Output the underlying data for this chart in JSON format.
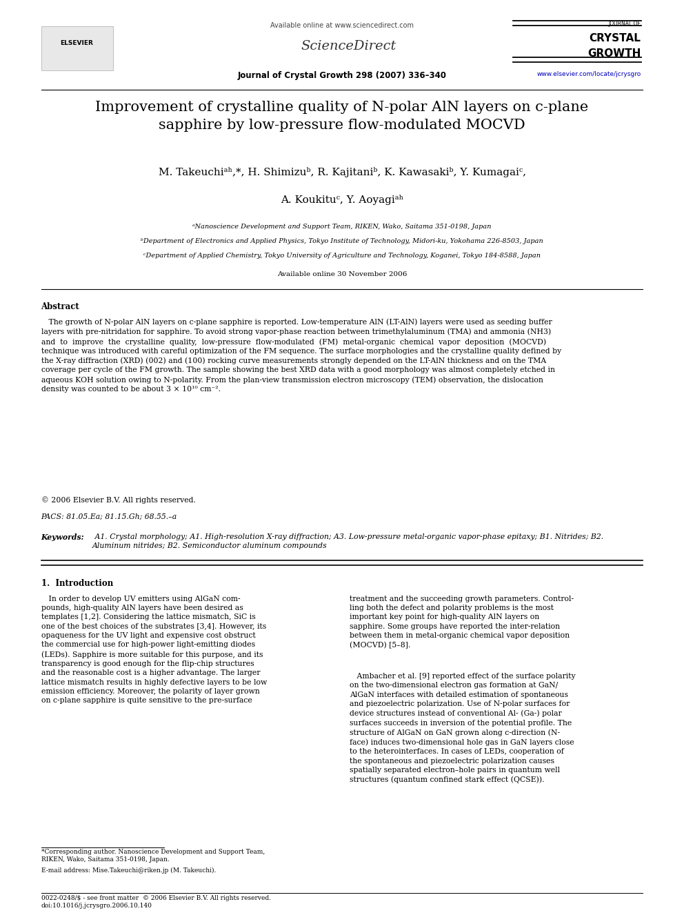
{
  "page_width": 9.92,
  "page_height": 13.23,
  "bg_color": "#ffffff",
  "header_available_online": "Available online at www.sciencedirect.com",
  "header_journal_info": "Journal of Crystal Growth 298 (2007) 336–340",
  "header_website": "www.elsevier.com/locate/jcrysgro",
  "header_journal_name1": "JOURNAL OF",
  "header_journal_name2": "CRYSTAL",
  "header_journal_name3": "GROWTH",
  "title": "Improvement of crystalline quality of N-polar AlN layers on c-plane\nsapphire by low-pressure flow-modulated MOCVD",
  "authors_line1": "M. Takeuchiᵃʰ,*, H. Shimizuᵇ, R. Kajitaniᵇ, K. Kawasakiᵇ, Y. Kumagaiᶜ,",
  "authors_line2": "A. Koukituᶜ, Y. Aoyagiᵃʰ",
  "aff1": "ᵃNanoscience Development and Support Team, RIKEN, Wako, Saitama 351-0198, Japan",
  "aff2": "ᵇDepartment of Electronics and Applied Physics, Tokyo Institute of Technology, Midori-ku, Yokohama 226-8503, Japan",
  "aff3": "ᶜDepartment of Applied Chemistry, Tokyo University of Agriculture and Technology, Koganei, Tokyo 184-8588, Japan",
  "available_online_date": "Available online 30 November 2006",
  "abstract_title": "Abstract",
  "abstract_text": "   The growth of N-polar AlN layers on c-plane sapphire is reported. Low-temperature AlN (LT-AlN) layers were used as seeding buffer\nlayers with pre-nitridation for sapphire. To avoid strong vapor-phase reaction between trimethylaluminum (TMA) and ammonia (NH3)\nand  to  improve  the  crystalline  quality,  low-pressure  flow-modulated  (FM)  metal-organic  chemical  vapor  deposition  (MOCVD)\ntechnique was introduced with careful optimization of the FM sequence. The surface morphologies and the crystalline quality defined by\nthe X-ray diffraction (XRD) (002) and (100) rocking curve measurements strongly depended on the LT-AlN thickness and on the TMA\ncoverage per cycle of the FM growth. The sample showing the best XRD data with a good morphology was almost completely etched in\naqueous KOH solution owing to N-polarity. From the plan-view transmission electron microscopy (TEM) observation, the dislocation\ndensity was counted to be about 3 × 10¹⁰ cm⁻².",
  "copyright": "© 2006 Elsevier B.V. All rights reserved.",
  "pacs": "PACS: 81.05.Ea; 81.15.Gh; 68.55.–a",
  "keywords_label": "Keywords:",
  "keywords_text": " A1. Crystal morphology; A1. High-resolution X-ray diffraction; A3. Low-pressure metal-organic vapor-phase epitaxy; B1. Nitrides; B2.\nAluminum nitrides; B2. Semiconductor aluminum compounds",
  "sec1_title": "1.  Introduction",
  "sec1_col1_para1": "   In order to develop UV emitters using AlGaN com-\npounds, high-quality AlN layers have been desired as\ntemplates [1,2]. Considering the lattice mismatch, SiC is\none of the best choices of the substrates [3,4]. However, its\nopaqueness for the UV light and expensive cost obstruct\nthe commercial use for high-power light-emitting diodes\n(LEDs). Sapphire is more suitable for this purpose, and its\ntransparency is good enough for the flip-chip structures\nand the reasonable cost is a higher advantage. The larger\nlattice mismatch results in highly defective layers to be low\nemission efficiency. Moreover, the polarity of layer grown\non c-plane sapphire is quite sensitive to the pre-surface",
  "sec1_col2_para1": "treatment and the succeeding growth parameters. Control-\nling both the defect and polarity problems is the most\nimportant key point for high-quality AlN layers on\nsapphire. Some groups have reported the inter-relation\nbetween them in metal-organic chemical vapor deposition\n(MOCVD) [5–8].",
  "sec1_col2_para2": "   Ambacher et al. [9] reported effect of the surface polarity\non the two-dimensional electron gas formation at GaN/\nAlGaN interfaces with detailed estimation of spontaneous\nand piezoelectric polarization. Use of N-polar surfaces for\ndevice structures instead of conventional Al- (Ga-) polar\nsurfaces succeeds in inversion of the potential profile. The\nstructure of AlGaN on GaN grown along c-direction (N-\nface) induces two-dimensional hole gas in GaN layers close\nto the heterointerfaces. In cases of LEDs, cooperation of\nthe spontaneous and piezoelectric polarization causes\nspatially separated electron–hole pairs in quantum well\nstructures (quantum confined stark effect (QCSE)).",
  "footnote_line": "*Corresponding author. Nanoscience Development and Support Team,\nRIKEN, Wako, Saitama 351-0198, Japan.",
  "footnote_email": "E-mail address: Mise.Takeuchi@riken.jp (M. Takeuchi).",
  "footer_text": "0022-0248/$ - see front matter  © 2006 Elsevier B.V. All rights reserved.\ndoi:10.1016/j.jcrysgro.2006.10.140"
}
